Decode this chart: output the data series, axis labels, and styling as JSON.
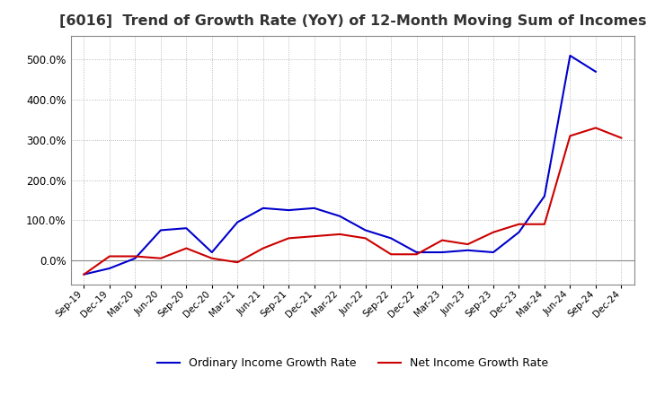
{
  "title": "[6016]  Trend of Growth Rate (YoY) of 12-Month Moving Sum of Incomes",
  "title_fontsize": 11.5,
  "x_labels": [
    "Sep-19",
    "Dec-19",
    "Mar-20",
    "Jun-20",
    "Sep-20",
    "Dec-20",
    "Mar-21",
    "Jun-21",
    "Sep-21",
    "Dec-21",
    "Mar-22",
    "Jun-22",
    "Sep-22",
    "Dec-22",
    "Mar-23",
    "Jun-23",
    "Sep-23",
    "Dec-23",
    "Mar-24",
    "Jun-24",
    "Sep-24",
    "Dec-24"
  ],
  "ordinary_income": [
    -35,
    -20,
    5,
    75,
    80,
    20,
    95,
    130,
    125,
    130,
    110,
    75,
    55,
    20,
    20,
    25,
    20,
    70,
    160,
    510,
    470,
    null
  ],
  "net_income": [
    -35,
    10,
    10,
    5,
    30,
    5,
    -5,
    30,
    55,
    60,
    65,
    55,
    15,
    15,
    50,
    40,
    70,
    90,
    90,
    310,
    330,
    305
  ],
  "ordinary_color": "#0000cc",
  "net_color": "#cc0000",
  "ylim": [
    -60,
    560
  ],
  "yticks": [
    0,
    100,
    200,
    300,
    400,
    500
  ],
  "background_color": "#ffffff",
  "grid_color": "#aaaaaa",
  "legend_labels": [
    "Ordinary Income Growth Rate",
    "Net Income Growth Rate"
  ]
}
